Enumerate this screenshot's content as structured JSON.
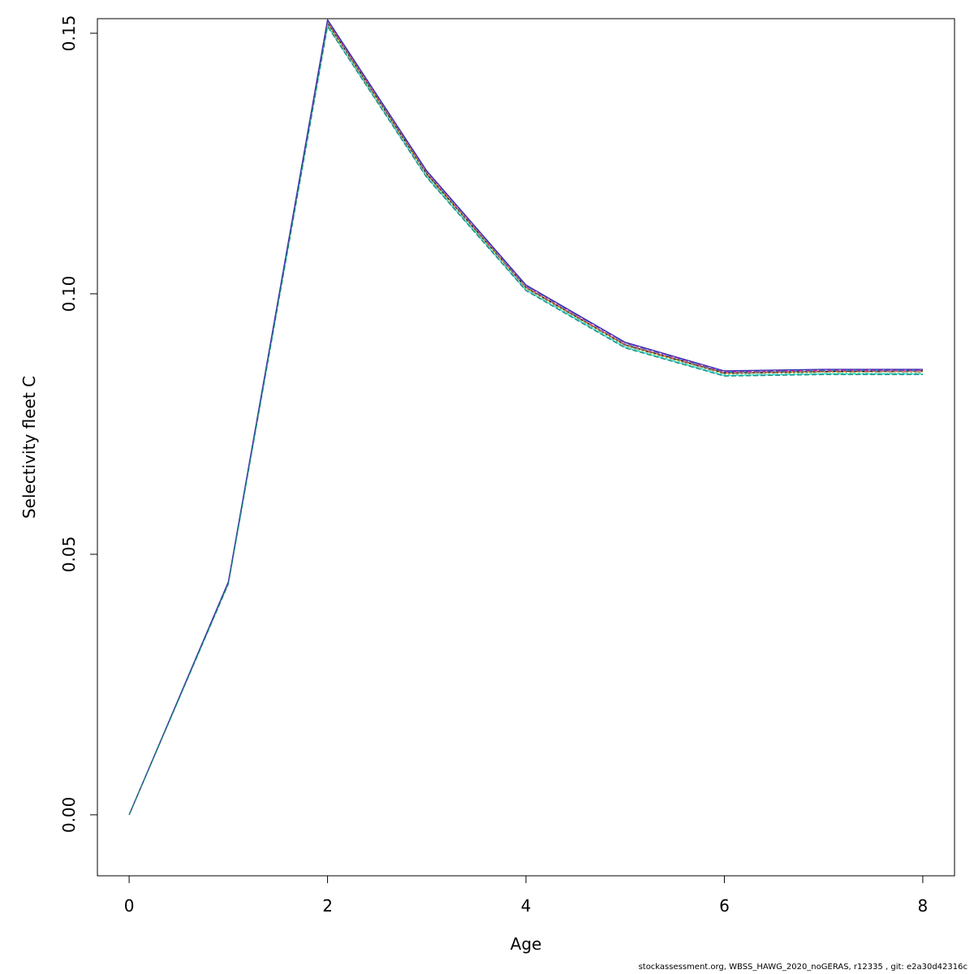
{
  "chart_data": {
    "type": "line",
    "title": "",
    "xlabel": "Age",
    "ylabel": "Selectivity fleet C",
    "xlim": [
      -0.32,
      8.32
    ],
    "ylim": [
      -0.0117,
      0.1528
    ],
    "x_ticks": [
      0,
      2,
      4,
      6,
      8
    ],
    "x_tick_labels": [
      "0",
      "2",
      "4",
      "6",
      "8"
    ],
    "y_ticks": [
      0.0,
      0.05,
      0.1,
      0.15
    ],
    "y_tick_labels": [
      "0.00",
      "0.05",
      "0.10",
      "0.15"
    ],
    "grid": false,
    "legend": "none",
    "x": [
      0,
      1,
      2,
      3,
      4,
      5,
      6,
      7,
      8
    ],
    "series": [
      {
        "color": "#000000",
        "values": [
          0.0,
          0.0445,
          0.152,
          0.123,
          0.1012,
          0.0902,
          0.0848,
          0.0851,
          0.0852
        ]
      },
      {
        "color": "#df536b",
        "values": [
          0.0,
          0.0446,
          0.1522,
          0.1232,
          0.1013,
          0.0903,
          0.0849,
          0.0852,
          0.0852
        ]
      },
      {
        "color": "#61d04f",
        "values": [
          0.0,
          0.0444,
          0.1516,
          0.1226,
          0.1009,
          0.0899,
          0.0845,
          0.0847,
          0.0848
        ]
      },
      {
        "color": "#2297e6",
        "values": [
          0.0,
          0.0446,
          0.1524,
          0.1234,
          0.1015,
          0.0905,
          0.085,
          0.0853,
          0.0853
        ]
      },
      {
        "color": "#28e2e5",
        "values": [
          0.0,
          0.0443,
          0.1514,
          0.1224,
          0.1007,
          0.0897,
          0.0843,
          0.0846,
          0.0846
        ]
      },
      {
        "color": "#cd0bbc",
        "values": [
          0.0,
          0.0447,
          0.1525,
          0.1235,
          0.1016,
          0.0906,
          0.0851,
          0.0854,
          0.0854
        ]
      },
      {
        "color": "#f5c710",
        "values": [
          0.0,
          0.0445,
          0.1519,
          0.1229,
          0.1011,
          0.0901,
          0.0847,
          0.085,
          0.085
        ]
      },
      {
        "color": "#9e9e9e",
        "values": [
          0.0,
          0.0444,
          0.1517,
          0.1227,
          0.101,
          0.09,
          0.0846,
          0.0849,
          0.0849
        ]
      },
      {
        "color": "#3a2fa8",
        "values": [
          0.0,
          0.0447,
          0.1526,
          0.1236,
          0.1017,
          0.0907,
          0.0852,
          0.0855,
          0.0855
        ]
      },
      {
        "color": "#1b8a7a",
        "values": [
          0.0,
          0.0443,
          0.1513,
          0.1223,
          0.1006,
          0.0896,
          0.0842,
          0.0845,
          0.0845
        ]
      }
    ]
  },
  "footer": "stockassessment.org, WBSS_HAWG_2020_noGERAS, r12335 , git: e2a30d42316c"
}
